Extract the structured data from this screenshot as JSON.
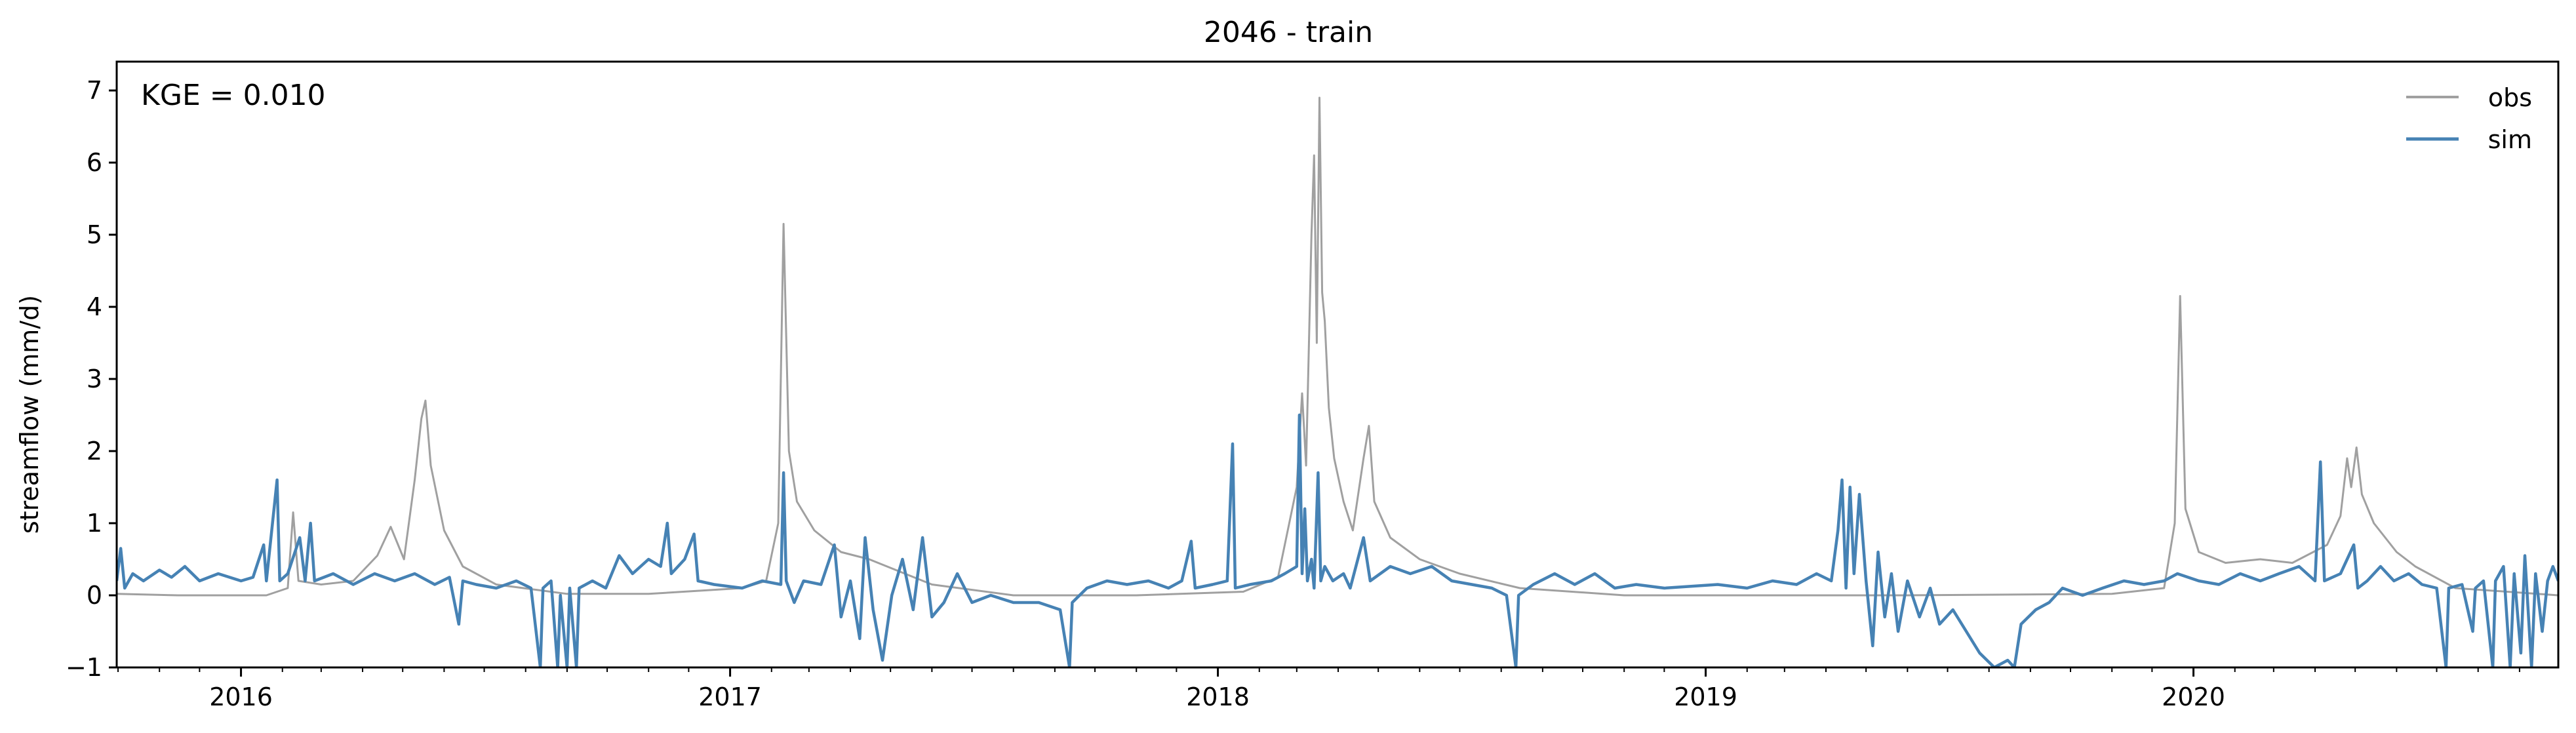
{
  "chart_data": {
    "type": "line",
    "title": "2046 - train",
    "xlabel": "",
    "ylabel": "streamflow (mm/d)",
    "annotation": "KGE = 0.010",
    "xlim": [
      "2015-09-30",
      "2020-09-30"
    ],
    "ylim": [
      -1,
      7.4
    ],
    "yticks": [
      -1,
      0,
      1,
      2,
      3,
      4,
      5,
      6,
      7
    ],
    "xticks": [
      {
        "label": "2016",
        "date": "2016-01-01"
      },
      {
        "label": "2017",
        "date": "2017-01-01"
      },
      {
        "label": "2018",
        "date": "2018-01-01"
      },
      {
        "label": "2019",
        "date": "2019-01-01"
      },
      {
        "label": "2020",
        "date": "2020-01-01"
      }
    ],
    "grid": false,
    "legend": "top-right",
    "series": [
      {
        "name": "obs",
        "color": "#a0a0a0",
        "points": [
          [
            "2015-09-30",
            0.02
          ],
          [
            "2015-11-15",
            0.0
          ],
          [
            "2016-01-01",
            0.0
          ],
          [
            "2016-01-20",
            0.0
          ],
          [
            "2016-02-05",
            0.1
          ],
          [
            "2016-02-09",
            1.15
          ],
          [
            "2016-02-13",
            0.2
          ],
          [
            "2016-03-01",
            0.15
          ],
          [
            "2016-03-25",
            0.2
          ],
          [
            "2016-04-12",
            0.55
          ],
          [
            "2016-04-22",
            0.95
          ],
          [
            "2016-05-02",
            0.5
          ],
          [
            "2016-05-10",
            1.6
          ],
          [
            "2016-05-15",
            2.45
          ],
          [
            "2016-05-18",
            2.7
          ],
          [
            "2016-05-22",
            1.8
          ],
          [
            "2016-06-01",
            0.9
          ],
          [
            "2016-06-15",
            0.4
          ],
          [
            "2016-07-10",
            0.15
          ],
          [
            "2016-09-01",
            0.02
          ],
          [
            "2016-11-01",
            0.02
          ],
          [
            "2017-01-10",
            0.1
          ],
          [
            "2017-01-28",
            0.2
          ],
          [
            "2017-02-06",
            1.0
          ],
          [
            "2017-02-10",
            5.15
          ],
          [
            "2017-02-14",
            2.0
          ],
          [
            "2017-02-20",
            1.3
          ],
          [
            "2017-03-05",
            0.9
          ],
          [
            "2017-03-25",
            0.6
          ],
          [
            "2017-04-15",
            0.5
          ],
          [
            "2017-06-01",
            0.15
          ],
          [
            "2017-08-01",
            0.0
          ],
          [
            "2017-11-01",
            0.0
          ],
          [
            "2018-01-20",
            0.05
          ],
          [
            "2018-02-15",
            0.25
          ],
          [
            "2018-03-01",
            1.5
          ],
          [
            "2018-03-05",
            2.8
          ],
          [
            "2018-03-08",
            1.8
          ],
          [
            "2018-03-12",
            5.0
          ],
          [
            "2018-03-14",
            6.1
          ],
          [
            "2018-03-16",
            3.5
          ],
          [
            "2018-03-18",
            6.9
          ],
          [
            "2018-03-20",
            4.2
          ],
          [
            "2018-03-22",
            3.8
          ],
          [
            "2018-03-25",
            2.6
          ],
          [
            "2018-03-29",
            1.9
          ],
          [
            "2018-04-05",
            1.3
          ],
          [
            "2018-04-12",
            0.9
          ],
          [
            "2018-04-20",
            1.9
          ],
          [
            "2018-04-24",
            2.35
          ],
          [
            "2018-04-28",
            1.3
          ],
          [
            "2018-05-10",
            0.8
          ],
          [
            "2018-06-01",
            0.5
          ],
          [
            "2018-07-01",
            0.3
          ],
          [
            "2018-08-15",
            0.1
          ],
          [
            "2018-11-01",
            0.0
          ],
          [
            "2019-06-01",
            0.0
          ],
          [
            "2019-11-01",
            0.02
          ],
          [
            "2019-12-10",
            0.1
          ],
          [
            "2019-12-18",
            1.0
          ],
          [
            "2019-12-22",
            4.15
          ],
          [
            "2019-12-26",
            1.2
          ],
          [
            "2020-01-05",
            0.6
          ],
          [
            "2020-01-25",
            0.45
          ],
          [
            "2020-02-20",
            0.5
          ],
          [
            "2020-03-15",
            0.45
          ],
          [
            "2020-04-10",
            0.7
          ],
          [
            "2020-04-20",
            1.1
          ],
          [
            "2020-04-25",
            1.9
          ],
          [
            "2020-04-28",
            1.5
          ],
          [
            "2020-05-02",
            2.05
          ],
          [
            "2020-05-06",
            1.4
          ],
          [
            "2020-05-15",
            1.0
          ],
          [
            "2020-06-01",
            0.6
          ],
          [
            "2020-06-15",
            0.4
          ],
          [
            "2020-07-15",
            0.1
          ],
          [
            "2020-09-30",
            0.0
          ]
        ]
      },
      {
        "name": "sim",
        "color": "#4682b4",
        "points": [
          [
            "2015-09-30",
            0.2
          ],
          [
            "2015-10-03",
            0.65
          ],
          [
            "2015-10-06",
            0.1
          ],
          [
            "2015-10-12",
            0.3
          ],
          [
            "2015-10-20",
            0.2
          ],
          [
            "2015-11-01",
            0.35
          ],
          [
            "2015-11-10",
            0.25
          ],
          [
            "2015-11-20",
            0.4
          ],
          [
            "2015-12-01",
            0.2
          ],
          [
            "2015-12-15",
            0.3
          ],
          [
            "2016-01-01",
            0.2
          ],
          [
            "2016-01-10",
            0.25
          ],
          [
            "2016-01-18",
            0.7
          ],
          [
            "2016-01-20",
            0.2
          ],
          [
            "2016-01-28",
            1.6
          ],
          [
            "2016-01-30",
            0.2
          ],
          [
            "2016-02-05",
            0.3
          ],
          [
            "2016-02-14",
            0.8
          ],
          [
            "2016-02-18",
            0.2
          ],
          [
            "2016-02-22",
            1.0
          ],
          [
            "2016-02-25",
            0.2
          ],
          [
            "2016-03-10",
            0.3
          ],
          [
            "2016-03-25",
            0.15
          ],
          [
            "2016-04-10",
            0.3
          ],
          [
            "2016-04-25",
            0.2
          ],
          [
            "2016-05-10",
            0.3
          ],
          [
            "2016-05-25",
            0.15
          ],
          [
            "2016-06-05",
            0.25
          ],
          [
            "2016-06-12",
            -0.4
          ],
          [
            "2016-06-15",
            0.2
          ],
          [
            "2016-06-25",
            0.15
          ],
          [
            "2016-07-10",
            0.1
          ],
          [
            "2016-07-25",
            0.2
          ],
          [
            "2016-08-05",
            0.1
          ],
          [
            "2016-08-12",
            -1.0
          ],
          [
            "2016-08-14",
            0.1
          ],
          [
            "2016-08-20",
            0.2
          ],
          [
            "2016-08-25",
            -1.0
          ],
          [
            "2016-08-27",
            0.0
          ],
          [
            "2016-09-01",
            -1.0
          ],
          [
            "2016-09-03",
            0.1
          ],
          [
            "2016-09-08",
            -1.0
          ],
          [
            "2016-09-10",
            0.1
          ],
          [
            "2016-09-20",
            0.2
          ],
          [
            "2016-09-30",
            0.1
          ],
          [
            "2016-10-10",
            0.55
          ],
          [
            "2016-10-20",
            0.3
          ],
          [
            "2016-11-01",
            0.5
          ],
          [
            "2016-11-10",
            0.4
          ],
          [
            "2016-11-15",
            1.0
          ],
          [
            "2016-11-18",
            0.3
          ],
          [
            "2016-11-28",
            0.5
          ],
          [
            "2016-12-05",
            0.85
          ],
          [
            "2016-12-08",
            0.2
          ],
          [
            "2016-12-20",
            0.15
          ],
          [
            "2017-01-10",
            0.1
          ],
          [
            "2017-01-25",
            0.2
          ],
          [
            "2017-02-08",
            0.15
          ],
          [
            "2017-02-10",
            1.7
          ],
          [
            "2017-02-12",
            0.2
          ],
          [
            "2017-02-18",
            -0.1
          ],
          [
            "2017-02-25",
            0.2
          ],
          [
            "2017-03-10",
            0.15
          ],
          [
            "2017-03-20",
            0.7
          ],
          [
            "2017-03-25",
            -0.3
          ],
          [
            "2017-04-01",
            0.2
          ],
          [
            "2017-04-08",
            -0.6
          ],
          [
            "2017-04-12",
            0.8
          ],
          [
            "2017-04-18",
            -0.2
          ],
          [
            "2017-04-25",
            -0.9
          ],
          [
            "2017-05-02",
            0.0
          ],
          [
            "2017-05-10",
            0.5
          ],
          [
            "2017-05-18",
            -0.2
          ],
          [
            "2017-05-25",
            0.8
          ],
          [
            "2017-06-01",
            -0.3
          ],
          [
            "2017-06-10",
            -0.1
          ],
          [
            "2017-06-20",
            0.3
          ],
          [
            "2017-07-01",
            -0.1
          ],
          [
            "2017-07-15",
            0.0
          ],
          [
            "2017-08-01",
            -0.1
          ],
          [
            "2017-08-20",
            -0.1
          ],
          [
            "2017-09-05",
            -0.2
          ],
          [
            "2017-09-12",
            -1.0
          ],
          [
            "2017-09-14",
            -0.1
          ],
          [
            "2017-09-25",
            0.1
          ],
          [
            "2017-10-10",
            0.2
          ],
          [
            "2017-10-25",
            0.15
          ],
          [
            "2017-11-10",
            0.2
          ],
          [
            "2017-11-25",
            0.1
          ],
          [
            "2017-12-05",
            0.2
          ],
          [
            "2017-12-12",
            0.75
          ],
          [
            "2017-12-15",
            0.1
          ],
          [
            "2017-12-28",
            0.15
          ],
          [
            "2018-01-08",
            0.2
          ],
          [
            "2018-01-12",
            2.1
          ],
          [
            "2018-01-14",
            0.1
          ],
          [
            "2018-01-25",
            0.15
          ],
          [
            "2018-02-10",
            0.2
          ],
          [
            "2018-02-20",
            0.3
          ],
          [
            "2018-03-01",
            0.4
          ],
          [
            "2018-03-03",
            2.5
          ],
          [
            "2018-03-05",
            0.3
          ],
          [
            "2018-03-07",
            1.2
          ],
          [
            "2018-03-09",
            0.2
          ],
          [
            "2018-03-12",
            0.5
          ],
          [
            "2018-03-14",
            0.1
          ],
          [
            "2018-03-17",
            1.7
          ],
          [
            "2018-03-19",
            0.2
          ],
          [
            "2018-03-22",
            0.4
          ],
          [
            "2018-03-28",
            0.2
          ],
          [
            "2018-04-05",
            0.3
          ],
          [
            "2018-04-10",
            0.1
          ],
          [
            "2018-04-20",
            0.8
          ],
          [
            "2018-04-25",
            0.2
          ],
          [
            "2018-05-10",
            0.4
          ],
          [
            "2018-05-25",
            0.3
          ],
          [
            "2018-06-10",
            0.4
          ],
          [
            "2018-06-25",
            0.2
          ],
          [
            "2018-07-10",
            0.15
          ],
          [
            "2018-07-25",
            0.1
          ],
          [
            "2018-08-05",
            0.0
          ],
          [
            "2018-08-12",
            -1.0
          ],
          [
            "2018-08-14",
            0.0
          ],
          [
            "2018-08-25",
            0.15
          ],
          [
            "2018-09-10",
            0.3
          ],
          [
            "2018-09-25",
            0.15
          ],
          [
            "2018-10-10",
            0.3
          ],
          [
            "2018-10-25",
            0.1
          ],
          [
            "2018-11-10",
            0.15
          ],
          [
            "2018-12-01",
            0.1
          ],
          [
            "2019-01-10",
            0.15
          ],
          [
            "2019-02-01",
            0.1
          ],
          [
            "2019-02-20",
            0.2
          ],
          [
            "2019-03-10",
            0.15
          ],
          [
            "2019-03-25",
            0.3
          ],
          [
            "2019-04-05",
            0.2
          ],
          [
            "2019-04-10",
            0.9
          ],
          [
            "2019-04-13",
            1.6
          ],
          [
            "2019-04-16",
            0.1
          ],
          [
            "2019-04-19",
            1.5
          ],
          [
            "2019-04-22",
            0.3
          ],
          [
            "2019-04-26",
            1.4
          ],
          [
            "2019-05-01",
            0.2
          ],
          [
            "2019-05-06",
            -0.7
          ],
          [
            "2019-05-10",
            0.6
          ],
          [
            "2019-05-15",
            -0.3
          ],
          [
            "2019-05-20",
            0.3
          ],
          [
            "2019-05-25",
            -0.5
          ],
          [
            "2019-06-01",
            0.2
          ],
          [
            "2019-06-10",
            -0.3
          ],
          [
            "2019-06-18",
            0.1
          ],
          [
            "2019-06-25",
            -0.4
          ],
          [
            "2019-07-05",
            -0.2
          ],
          [
            "2019-07-15",
            -0.5
          ],
          [
            "2019-07-25",
            -0.8
          ],
          [
            "2019-08-05",
            -1.0
          ],
          [
            "2019-08-15",
            -0.9
          ],
          [
            "2019-08-20",
            -1.0
          ],
          [
            "2019-08-25",
            -0.4
          ],
          [
            "2019-09-05",
            -0.2
          ],
          [
            "2019-09-15",
            -0.1
          ],
          [
            "2019-09-25",
            0.1
          ],
          [
            "2019-10-10",
            0.0
          ],
          [
            "2019-10-25",
            0.1
          ],
          [
            "2019-11-10",
            0.2
          ],
          [
            "2019-11-25",
            0.15
          ],
          [
            "2019-12-10",
            0.2
          ],
          [
            "2019-12-20",
            0.3
          ],
          [
            "2020-01-05",
            0.2
          ],
          [
            "2020-01-20",
            0.15
          ],
          [
            "2020-02-05",
            0.3
          ],
          [
            "2020-02-20",
            0.2
          ],
          [
            "2020-03-05",
            0.3
          ],
          [
            "2020-03-20",
            0.4
          ],
          [
            "2020-04-01",
            0.2
          ],
          [
            "2020-04-05",
            1.85
          ],
          [
            "2020-04-08",
            0.2
          ],
          [
            "2020-04-20",
            0.3
          ],
          [
            "2020-04-30",
            0.7
          ],
          [
            "2020-05-03",
            0.1
          ],
          [
            "2020-05-10",
            0.2
          ],
          [
            "2020-05-20",
            0.4
          ],
          [
            "2020-05-30",
            0.2
          ],
          [
            "2020-06-10",
            0.3
          ],
          [
            "2020-06-20",
            0.15
          ],
          [
            "2020-07-01",
            0.1
          ],
          [
            "2020-07-08",
            -1.0
          ],
          [
            "2020-07-10",
            0.1
          ],
          [
            "2020-07-20",
            0.15
          ],
          [
            "2020-07-28",
            -0.5
          ],
          [
            "2020-07-30",
            0.1
          ],
          [
            "2020-08-05",
            0.2
          ],
          [
            "2020-08-12",
            -1.0
          ],
          [
            "2020-08-14",
            0.2
          ],
          [
            "2020-08-20",
            0.4
          ],
          [
            "2020-08-25",
            -1.0
          ],
          [
            "2020-08-28",
            0.3
          ],
          [
            "2020-09-02",
            -0.8
          ],
          [
            "2020-09-05",
            0.55
          ],
          [
            "2020-09-10",
            -1.0
          ],
          [
            "2020-09-13",
            0.3
          ],
          [
            "2020-09-18",
            -0.5
          ],
          [
            "2020-09-22",
            0.2
          ],
          [
            "2020-09-26",
            0.4
          ],
          [
            "2020-09-30",
            0.2
          ]
        ]
      }
    ]
  }
}
